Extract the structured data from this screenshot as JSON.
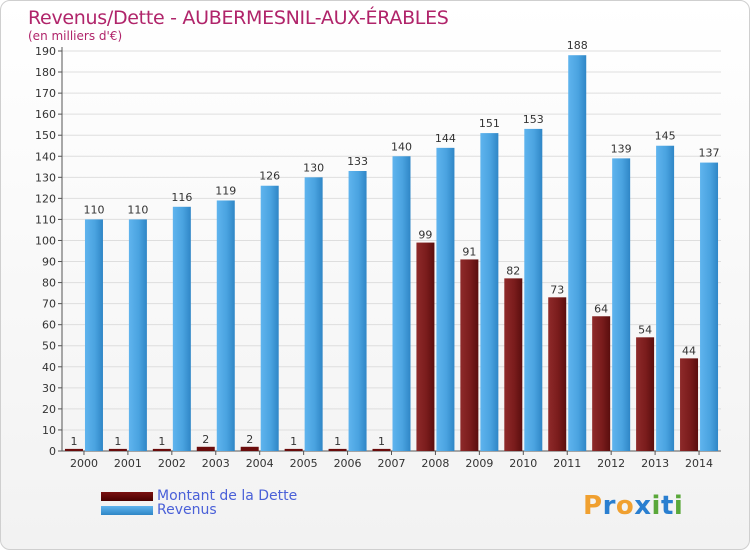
{
  "chart_data": {
    "type": "bar",
    "title": "Revenus/Dette - AUBERMESNIL-AUX-ÉRABLES",
    "subtitle": "(en milliers d'€)",
    "categories": [
      "2000",
      "2001",
      "2002",
      "2003",
      "2004",
      "2005",
      "2006",
      "2007",
      "2008",
      "2009",
      "2010",
      "2011",
      "2012",
      "2013",
      "2014"
    ],
    "series": [
      {
        "name": "Montant de la Dette",
        "color": "#8b1a1a",
        "values": [
          1,
          1,
          1,
          2,
          2,
          1,
          1,
          1,
          99,
          91,
          82,
          73,
          64,
          54,
          44
        ]
      },
      {
        "name": "Revenus",
        "color": "#4aa3e0",
        "values": [
          110,
          110,
          116,
          119,
          126,
          130,
          133,
          140,
          144,
          151,
          153,
          188,
          139,
          145,
          137
        ]
      }
    ],
    "yticks": [
      0,
      10,
      20,
      30,
      40,
      50,
      60,
      70,
      80,
      90,
      100,
      110,
      120,
      130,
      140,
      150,
      160,
      170,
      180,
      190
    ],
    "ylim": [
      0,
      190
    ],
    "grid": true,
    "legend": "bottom-left"
  },
  "logo": {
    "letters": [
      "P",
      "r",
      "o",
      "x",
      "i",
      "t",
      "i"
    ],
    "colors": [
      "#f0a030",
      "#2a7fd0",
      "#f0a030",
      "#2a7fd0",
      "#5aa83a",
      "#2a7fd0",
      "#5aa83a"
    ]
  }
}
